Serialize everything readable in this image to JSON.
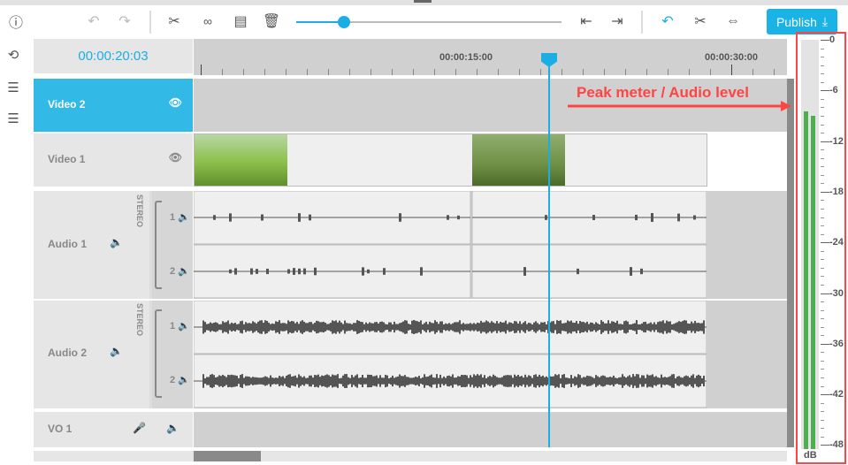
{
  "toolbar": {
    "icons": [
      "info-icon",
      "undo-icon",
      "redo-icon",
      "scissors-icon",
      "unlink-icon",
      "align-icon",
      "trash-icon",
      "move-left-icon",
      "move-right-icon",
      "magnet-icon",
      "ripple-cut-icon",
      "fit-icon"
    ],
    "zoom_slider": 0.18,
    "publish_label": "Publish"
  },
  "sidebar": {
    "icons": [
      "reset-icon",
      "add-track-icon",
      "remove-track-icon"
    ]
  },
  "timeline": {
    "timecode": "00:00:20:03",
    "ruler_labels": [
      "00:00:15:00",
      "00:00:30:00"
    ],
    "playhead_time": "00:00:20:03"
  },
  "tracks": [
    {
      "name": "Video 2",
      "type": "video",
      "selected": true
    },
    {
      "name": "Video 1",
      "type": "video"
    },
    {
      "name": "Audio 1",
      "type": "audio",
      "mode": "STEREO",
      "channels": [
        "1",
        "2"
      ]
    },
    {
      "name": "Audio 2",
      "type": "audio",
      "mode": "STEREO",
      "channels": [
        "1",
        "2"
      ]
    },
    {
      "name": "VO 1",
      "type": "voiceover"
    }
  ],
  "meter": {
    "unit": "dB",
    "scale": [
      "0",
      "-6",
      "-12",
      "-18",
      "-24",
      "-30",
      "-36",
      "-42",
      "-48"
    ],
    "levels_db": [
      -8.5,
      -9
    ]
  },
  "annotation": {
    "text": "Peak meter / Audio level",
    "color": "#f44444"
  },
  "colors": {
    "accent": "#1ab3e6",
    "meter": "#4caf50"
  }
}
